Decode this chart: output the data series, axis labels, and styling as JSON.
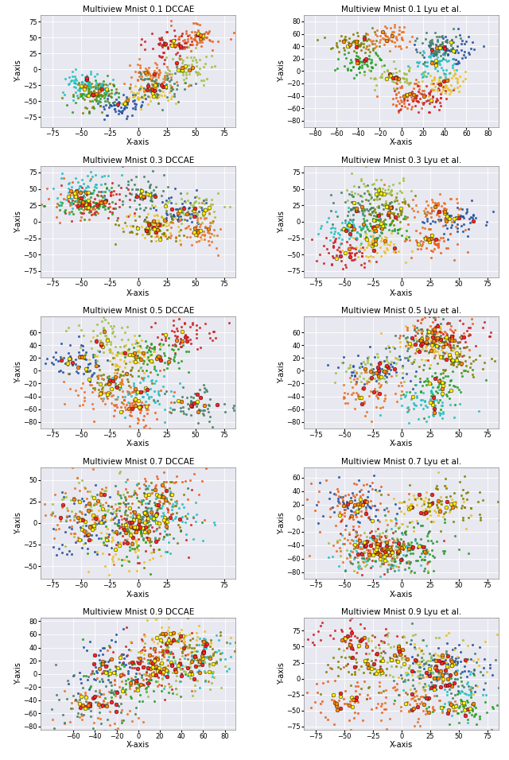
{
  "titles": [
    [
      "Multiview Mnist 0.1 DCCAE",
      "Multiview Mnist 0.1 Lyu et al."
    ],
    [
      "Multiview Mnist 0.3 DCCAE",
      "Multiview Mnist 0.3 Lyu et al."
    ],
    [
      "Multiview Mnist 0.5 DCCAE",
      "Multiview Mnist 0.5 Lyu et al."
    ],
    [
      "Multiview Mnist 0.7 DCCAE",
      "Multiview Mnist 0.7 Lyu et al."
    ],
    [
      "Multiview Mnist 0.9 DCCAE",
      "Multiview Mnist 0.9 Lyu et al."
    ]
  ],
  "xlims": [
    [
      [
        -85,
        85
      ],
      [
        -90,
        90
      ]
    ],
    [
      [
        -85,
        85
      ],
      [
        -85,
        85
      ]
    ],
    [
      [
        -85,
        85
      ],
      [
        -85,
        85
      ]
    ],
    [
      [
        -85,
        85
      ],
      [
        -85,
        85
      ]
    ],
    [
      [
        -90,
        90
      ],
      [
        -85,
        85
      ]
    ]
  ],
  "ylims": [
    [
      [
        -90,
        85
      ],
      [
        -90,
        90
      ]
    ],
    [
      [
        -85,
        85
      ],
      [
        -85,
        85
      ]
    ],
    [
      [
        -90,
        85
      ],
      [
        -90,
        85
      ]
    ],
    [
      [
        -65,
        65
      ],
      [
        -90,
        75
      ]
    ],
    [
      [
        -85,
        85
      ],
      [
        -80,
        95
      ]
    ]
  ],
  "xticks": [
    [
      [
        -75,
        -50,
        -25,
        0,
        25,
        50,
        75
      ],
      [
        -80,
        -60,
        -40,
        -20,
        0,
        20,
        40,
        60,
        80
      ]
    ],
    [
      [
        -75,
        -50,
        -25,
        0,
        25,
        50,
        75
      ],
      [
        -75,
        -50,
        -25,
        0,
        25,
        50,
        75
      ]
    ],
    [
      [
        -75,
        -50,
        -25,
        0,
        25,
        50,
        75
      ],
      [
        -75,
        -50,
        -25,
        0,
        25,
        50,
        75
      ]
    ],
    [
      [
        -75,
        -50,
        -25,
        0,
        25,
        75
      ],
      [
        -75,
        -50,
        -25,
        0,
        25,
        50,
        75
      ]
    ],
    [
      [
        -60,
        -40,
        -20,
        0,
        20,
        40,
        60,
        80
      ],
      [
        -75,
        -50,
        -25,
        0,
        25,
        50,
        75
      ]
    ]
  ],
  "yticks": [
    [
      [
        -75,
        -50,
        -25,
        0,
        25,
        50,
        75
      ],
      [
        -80,
        -60,
        -40,
        -20,
        0,
        20,
        40,
        60,
        80
      ]
    ],
    [
      [
        -75,
        -50,
        -25,
        0,
        25,
        50,
        75
      ],
      [
        -75,
        -50,
        -25,
        0,
        25,
        50,
        75
      ]
    ],
    [
      [
        -80,
        -60,
        -40,
        -20,
        0,
        20,
        40,
        60
      ],
      [
        -80,
        -60,
        -40,
        -20,
        0,
        20,
        40,
        60
      ]
    ],
    [
      [
        -50,
        -25,
        0,
        25,
        50
      ],
      [
        -80,
        -60,
        -40,
        -20,
        0,
        20,
        40,
        60
      ]
    ],
    [
      [
        -80,
        -60,
        -40,
        -20,
        0,
        20,
        40,
        60,
        80
      ],
      [
        -75,
        -50,
        -25,
        0,
        25,
        50,
        75
      ]
    ]
  ],
  "colors": [
    "#1f77b4",
    "#ff7f0e",
    "#2ca02c",
    "#d62728",
    "#9467bd",
    "#8c564b",
    "#e377c2",
    "#bcbd22",
    "#17becf",
    "#ffdd44"
  ],
  "bg_color": "#e8e8f0",
  "title_fontsize": 7.5,
  "label_fontsize": 7,
  "tick_fontsize": 6,
  "n_classes": 10,
  "n_points_main": 500,
  "n_points_outlier": 30,
  "seed": 42
}
